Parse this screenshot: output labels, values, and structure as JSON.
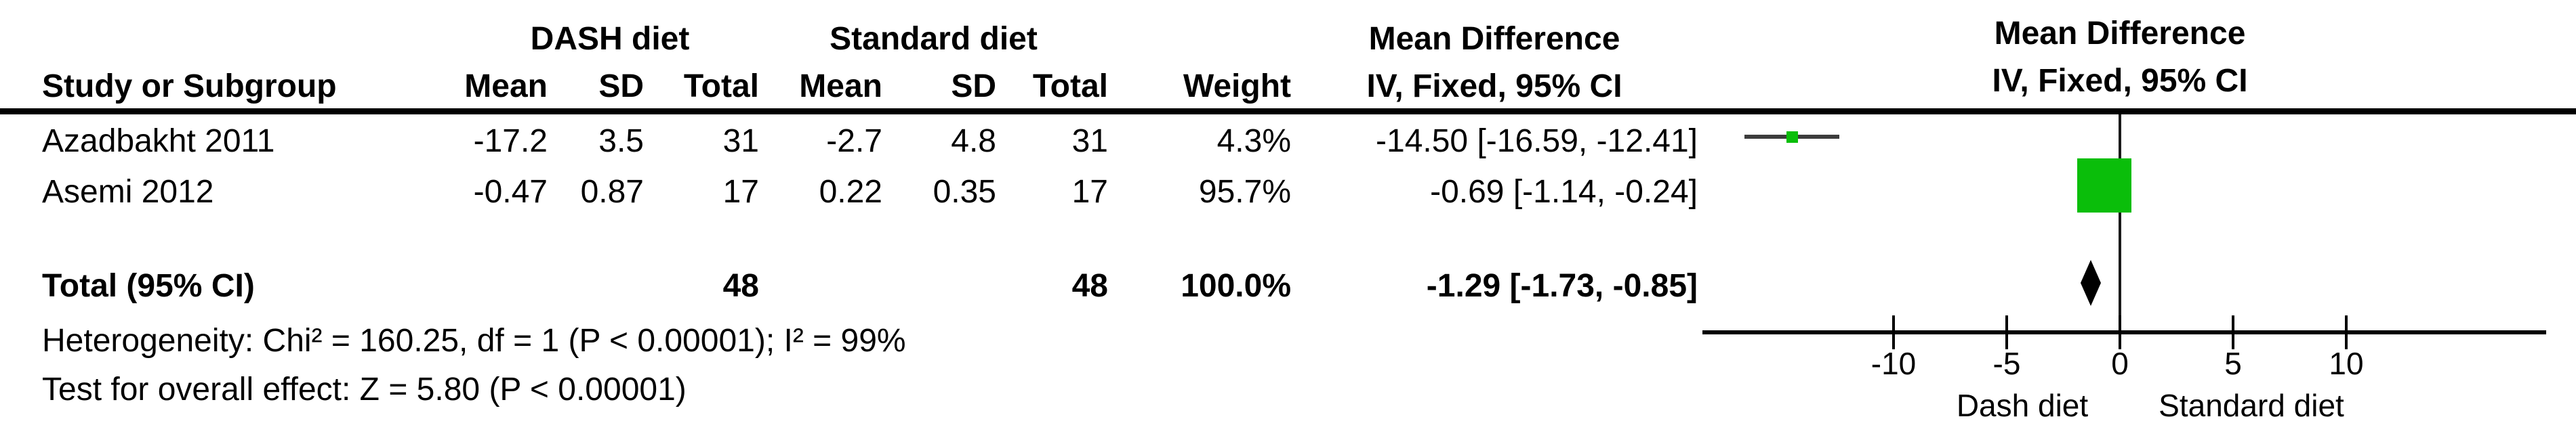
{
  "colors": {
    "marker_green": "#0ABE0A",
    "ci_line": "#3C3C3C",
    "diamond_black": "#000000",
    "text": "#000000",
    "background": "#FFFFFF"
  },
  "header": {
    "dash_group": "DASH diet",
    "standard_group": "Standard diet",
    "md_text_col": "Mean Difference",
    "study": "Study or Subgroup",
    "mean1": "Mean",
    "sd1": "SD",
    "total1": "Total",
    "mean2": "Mean",
    "sd2": "SD",
    "total2": "Total",
    "weight": "Weight",
    "iv_text_col": "IV, Fixed, 95% CI",
    "md_plot_col": "Mean Difference",
    "iv_plot_col": "IV, Fixed, 95% CI"
  },
  "rows": [
    {
      "study": "Azadbakht 2011",
      "dash_mean": "-17.2",
      "dash_sd": "3.5",
      "dash_total": "31",
      "std_mean": "-2.7",
      "std_sd": "4.8",
      "std_total": "31",
      "weight": "4.3%",
      "ci_text": "-14.50 [-16.59, -12.41]"
    },
    {
      "study": "Asemi 2012",
      "dash_mean": "-0.47",
      "dash_sd": "0.87",
      "dash_total": "17",
      "std_mean": "0.22",
      "std_sd": "0.35",
      "std_total": "17",
      "weight": "95.7%",
      "ci_text": "-0.69 [-1.14, -0.24]"
    }
  ],
  "total_row": {
    "label": "Total (95% CI)",
    "dash_total": "48",
    "std_total": "48",
    "weight": "100.0%",
    "ci_text": "-1.29 [-1.73, -0.85]"
  },
  "footnotes": {
    "heterogeneity": "Heterogeneity: Chi² = 160.25, df = 1 (P < 0.00001); I² = 99%",
    "overall_effect": "Test for overall effect: Z = 5.80 (P < 0.00001)"
  },
  "chart_data": {
    "type": "forest",
    "effect_measure": "Mean Difference, IV, Fixed, 95% CI",
    "x_axis": {
      "ticks": [
        -10,
        -5,
        0,
        5,
        10
      ],
      "xlim": [
        -18.5,
        18.8
      ],
      "zero_line": 0,
      "label_left": "Dash diet",
      "label_right": "Standard diet"
    },
    "studies": [
      {
        "name": "Azadbakht 2011",
        "md": -14.5,
        "ci_low": -16.59,
        "ci_high": -12.41,
        "weight_pct": 4.3
      },
      {
        "name": "Asemi 2012",
        "md": -0.69,
        "ci_low": -1.14,
        "ci_high": -0.24,
        "weight_pct": 95.7
      }
    ],
    "total": {
      "name": "Total (95% CI)",
      "md": -1.29,
      "ci_low": -1.73,
      "ci_high": -0.85,
      "weight_pct": 100.0
    },
    "heterogeneity": {
      "chi2": 160.25,
      "df": 1,
      "p": "< 0.00001",
      "i2_pct": 99
    },
    "overall_effect": {
      "z": 5.8,
      "p": "< 0.00001"
    }
  }
}
